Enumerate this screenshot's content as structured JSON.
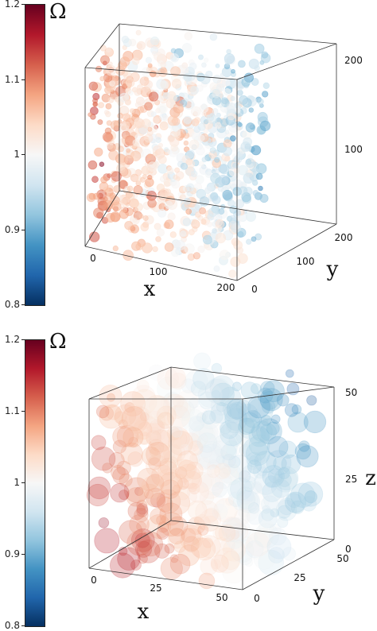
{
  "chart_data": [
    {
      "type": "3d-volume",
      "colorbar": {
        "label": "Ω",
        "ticks": [
          "1.2",
          "1.1",
          "1",
          "0.9",
          "0.8"
        ],
        "tick_values": [
          1.2,
          1.1,
          1.0,
          0.9,
          0.8
        ],
        "range": [
          0.8,
          1.2
        ],
        "colormap": [
          "#67001f",
          "#b2182b",
          "#d6604d",
          "#f4a582",
          "#fddbc7",
          "#f7f7f7",
          "#d1e5f0",
          "#92c5de",
          "#4393c3",
          "#2166ac",
          "#053061"
        ]
      },
      "axes": {
        "x": {
          "label": "x",
          "ticks": [
            "0",
            "100",
            "200"
          ],
          "range": [
            0,
            200
          ]
        },
        "y": {
          "label": "y",
          "ticks": [
            "0",
            "100",
            "200"
          ],
          "range": [
            0,
            200
          ]
        },
        "z": {
          "label": "",
          "ticks": [
            "100",
            "200"
          ],
          "range": [
            0,
            200
          ]
        }
      },
      "pattern": "periodic clusters, red front-left, blue back-right"
    },
    {
      "type": "3d-volume",
      "colorbar": {
        "label": "Ω",
        "ticks": [
          "1.2",
          "1.1",
          "1",
          "0.9",
          "0.8"
        ],
        "tick_values": [
          1.2,
          1.1,
          1.0,
          0.9,
          0.8
        ],
        "range": [
          0.8,
          1.2
        ],
        "colormap": [
          "#67001f",
          "#b2182b",
          "#d6604d",
          "#f4a582",
          "#fddbc7",
          "#f7f7f7",
          "#d1e5f0",
          "#92c5de",
          "#4393c3",
          "#2166ac",
          "#053061"
        ]
      },
      "axes": {
        "x": {
          "label": "x",
          "ticks": [
            "0",
            "25",
            "50"
          ],
          "range": [
            0,
            50
          ]
        },
        "y": {
          "label": "y",
          "ticks": [
            "0",
            "25",
            "50"
          ],
          "range": [
            0,
            50
          ]
        },
        "z": {
          "label": "z",
          "ticks": [
            "0",
            "25",
            "50"
          ],
          "range": [
            0,
            50
          ]
        }
      },
      "pattern": "spherical blobs, red lower-front-left, blue upper-back-right"
    }
  ]
}
